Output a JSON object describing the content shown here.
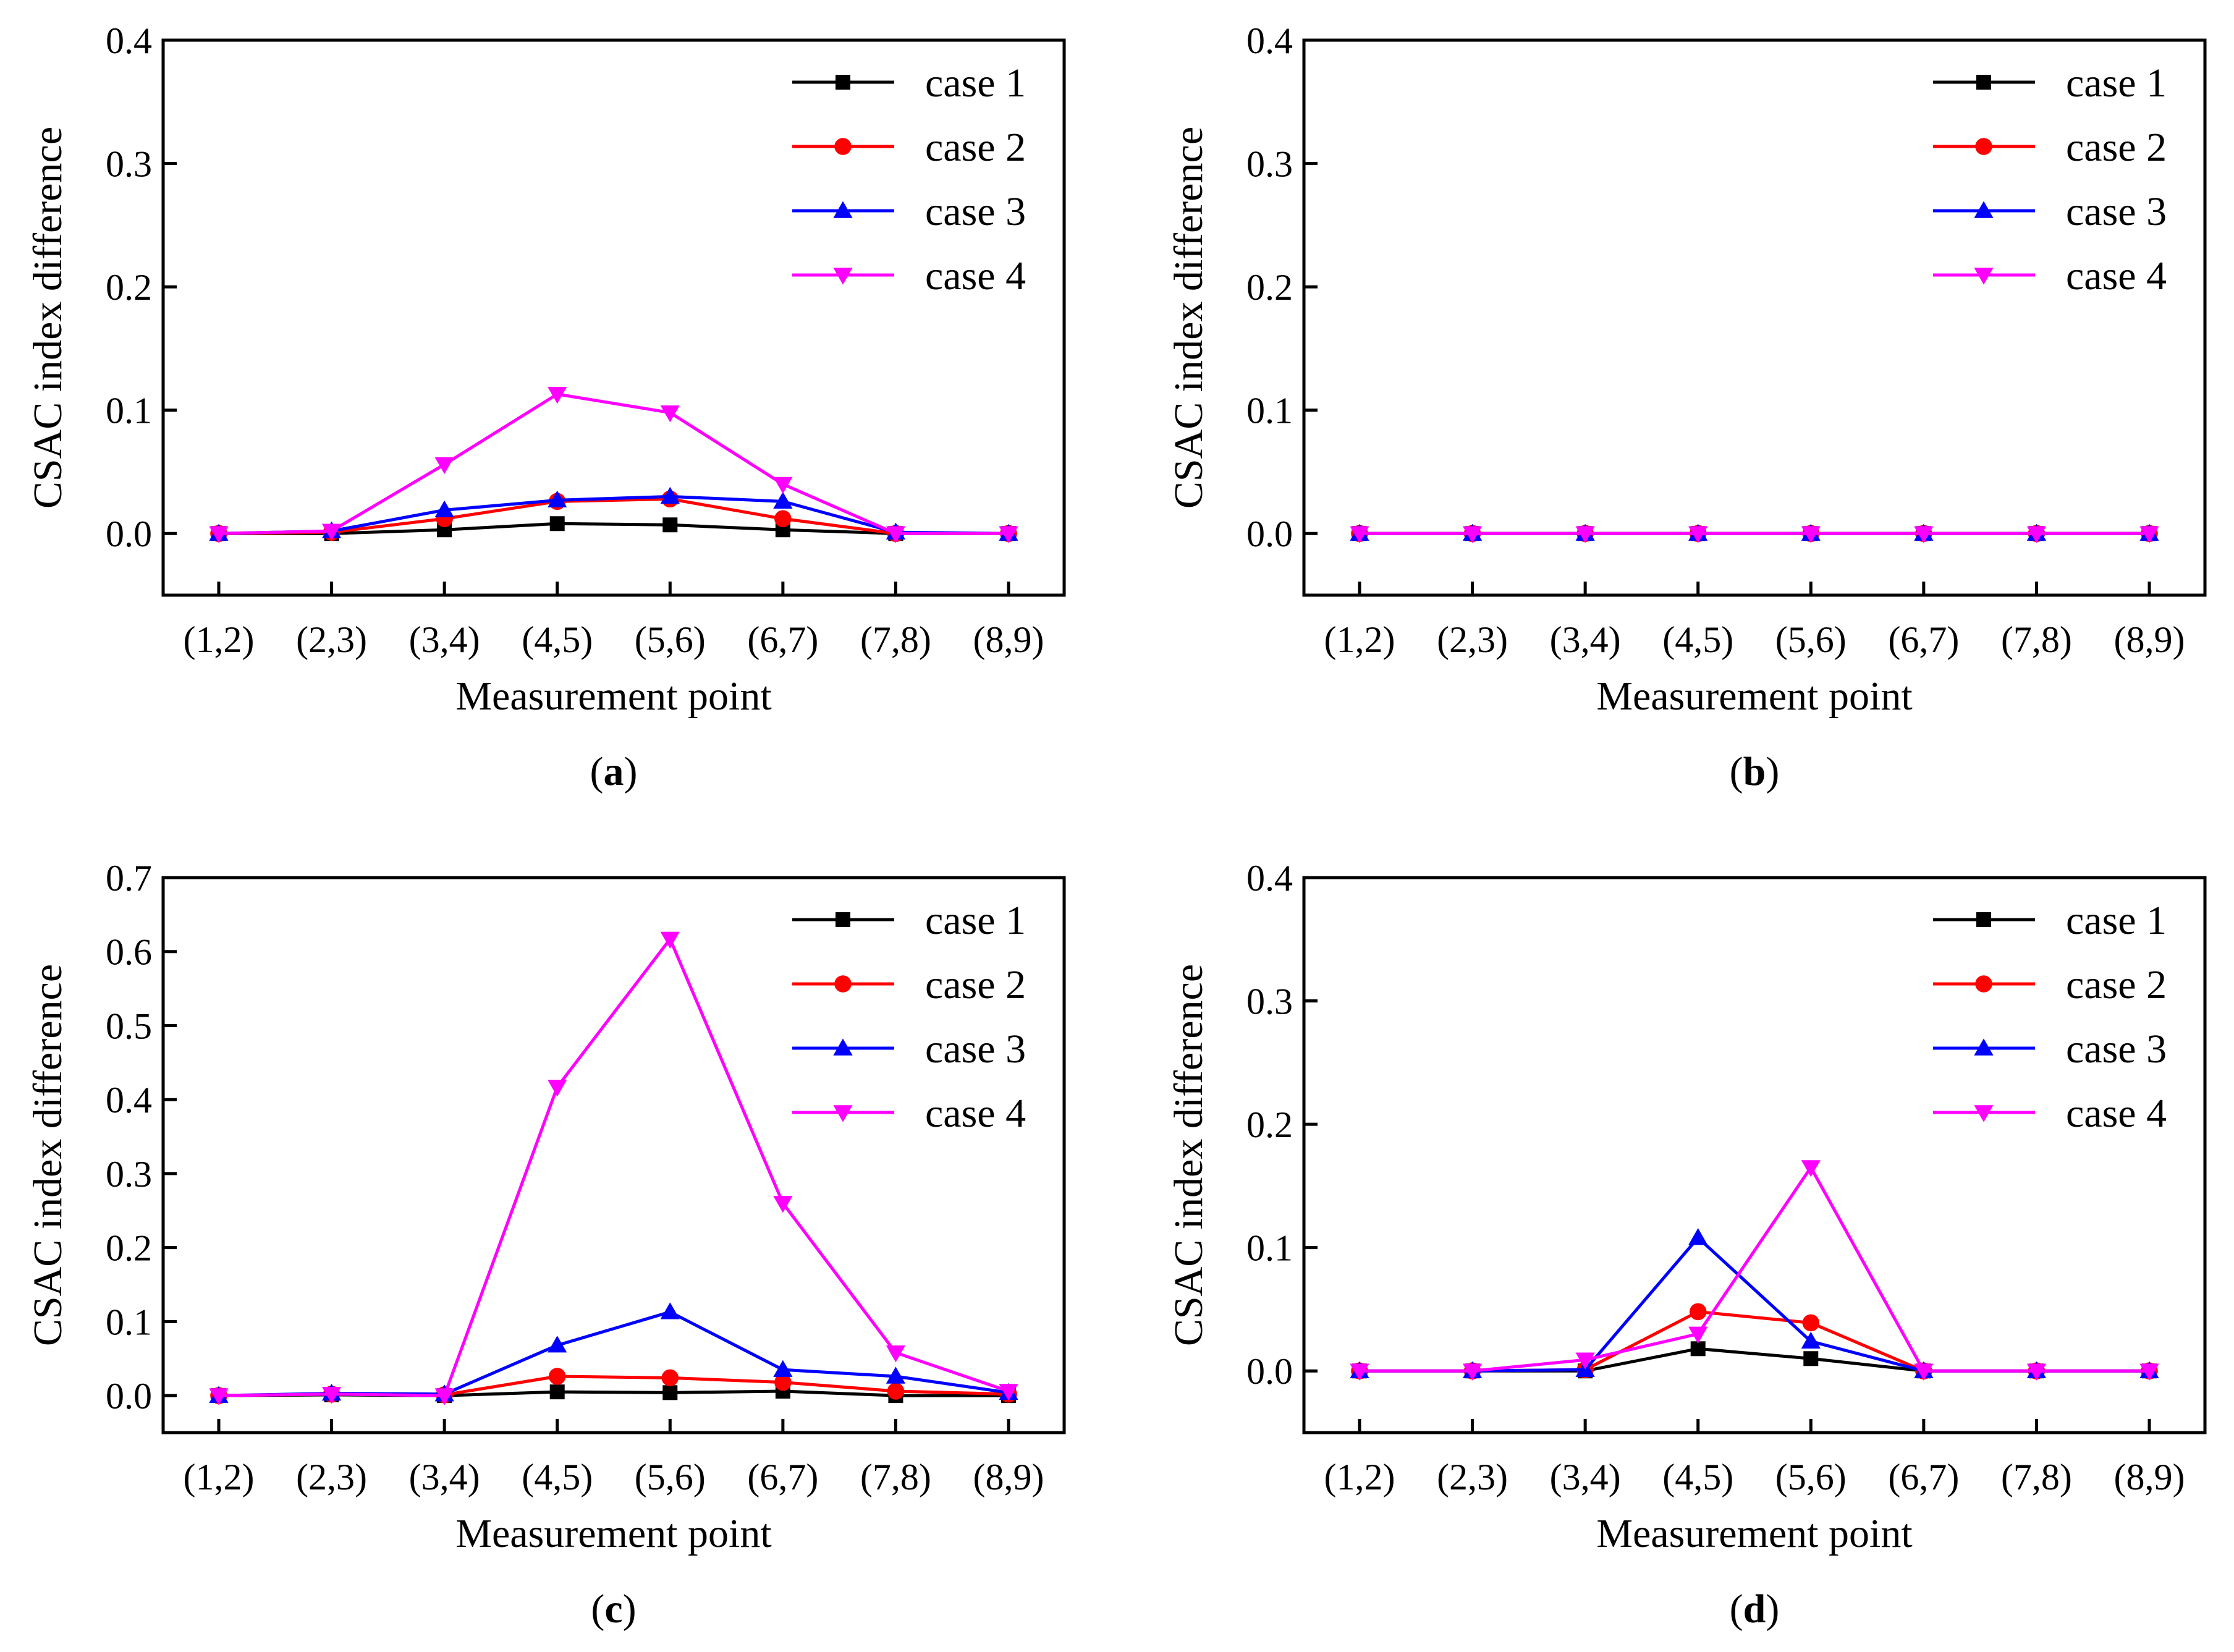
{
  "figure": {
    "colors": {
      "case 1": "#000000",
      "case 2": "#ff0000",
      "case 3": "#0000ff",
      "case 4": "#ff00ff"
    },
    "markers": {
      "case 1": "square",
      "case 2": "circle",
      "case 3": "triangle-up",
      "case 4": "triangle-down"
    }
  },
  "chart_data": [
    {
      "panel": "a",
      "caption": {
        "open": "(",
        "letter": "a",
        "close": ")"
      },
      "type": "line",
      "xlabel": "Measurement point",
      "ylabel": "CSAC index difference",
      "categories": [
        "(1,2)",
        "(2,3)",
        "(3,4)",
        "(4,5)",
        "(5,6)",
        "(6,7)",
        "(7,8)",
        "(8,9)"
      ],
      "ylim": [
        -0.05,
        0.4
      ],
      "yticks": [
        0.0,
        0.1,
        0.2,
        0.3,
        0.4
      ],
      "ytick_labels": [
        "0.0",
        "0.1",
        "0.2",
        "0.3",
        "0.4"
      ],
      "legend": "top-right",
      "series": [
        {
          "name": "case 1",
          "values": [
            0,
            0,
            0.003,
            0.008,
            0.007,
            0.003,
            0,
            0
          ]
        },
        {
          "name": "case 2",
          "values": [
            0,
            0.001,
            0.012,
            0.026,
            0.028,
            0.012,
            0,
            0
          ]
        },
        {
          "name": "case 3",
          "values": [
            0,
            0.002,
            0.019,
            0.027,
            0.03,
            0.026,
            0.001,
            0
          ]
        },
        {
          "name": "case 4",
          "values": [
            0,
            0.002,
            0.056,
            0.113,
            0.098,
            0.04,
            0,
            0
          ]
        }
      ]
    },
    {
      "panel": "b",
      "caption": {
        "open": "(",
        "letter": "b",
        "close": ")"
      },
      "type": "line",
      "xlabel": "Measurement point",
      "ylabel": "CSAC index difference",
      "categories": [
        "(1,2)",
        "(2,3)",
        "(3,4)",
        "(4,5)",
        "(5,6)",
        "(6,7)",
        "(7,8)",
        "(8,9)"
      ],
      "ylim": [
        -0.05,
        0.4
      ],
      "yticks": [
        0.0,
        0.1,
        0.2,
        0.3,
        0.4
      ],
      "ytick_labels": [
        "0.0",
        "0.1",
        "0.2",
        "0.3",
        "0.4"
      ],
      "legend": "top-right",
      "series": [
        {
          "name": "case 1",
          "values": [
            0,
            0,
            0,
            0,
            0,
            0,
            0,
            0
          ]
        },
        {
          "name": "case 2",
          "values": [
            0,
            0,
            0,
            0,
            0,
            0,
            0,
            0
          ]
        },
        {
          "name": "case 3",
          "values": [
            0,
            0,
            0,
            0,
            0,
            0,
            0,
            0
          ]
        },
        {
          "name": "case 4",
          "values": [
            0,
            0,
            0,
            0,
            0,
            0,
            0,
            0
          ]
        }
      ]
    },
    {
      "panel": "c",
      "caption": {
        "open": "(",
        "letter": "c",
        "close": ")"
      },
      "type": "line",
      "xlabel": "Measurement point",
      "ylabel": "CSAC index difference",
      "categories": [
        "(1,2)",
        "(2,3)",
        "(3,4)",
        "(4,5)",
        "(5,6)",
        "(6,7)",
        "(7,8)",
        "(8,9)"
      ],
      "ylim": [
        -0.05,
        0.7
      ],
      "yticks": [
        0.0,
        0.1,
        0.2,
        0.3,
        0.4,
        0.5,
        0.6,
        0.7
      ],
      "ytick_labels": [
        "0.0",
        "0.1",
        "0.2",
        "0.3",
        "0.4",
        "0.5",
        "0.6",
        "0.7"
      ],
      "legend": "top-right",
      "series": [
        {
          "name": "case 1",
          "values": [
            0,
            0.001,
            0,
            0.005,
            0.004,
            0.006,
            0,
            0
          ]
        },
        {
          "name": "case 2",
          "values": [
            0,
            0.002,
            0.001,
            0.026,
            0.024,
            0.018,
            0.006,
            0.002
          ]
        },
        {
          "name": "case 3",
          "values": [
            0,
            0.003,
            0.002,
            0.068,
            0.113,
            0.035,
            0.026,
            0.004
          ]
        },
        {
          "name": "case 4",
          "values": [
            0,
            0.002,
            0,
            0.417,
            0.617,
            0.26,
            0.058,
            0.006
          ]
        }
      ]
    },
    {
      "panel": "d",
      "caption": {
        "open": "(",
        "letter": "d",
        "close": ")"
      },
      "type": "line",
      "xlabel": "Measurement point",
      "ylabel": "CSAC index difference",
      "categories": [
        "(1,2)",
        "(2,3)",
        "(3,4)",
        "(4,5)",
        "(5,6)",
        "(6,7)",
        "(7,8)",
        "(8,9)"
      ],
      "ylim": [
        -0.05,
        0.4
      ],
      "yticks": [
        0.0,
        0.1,
        0.2,
        0.3,
        0.4
      ],
      "ytick_labels": [
        "0.0",
        "0.1",
        "0.2",
        "0.3",
        "0.4"
      ],
      "legend": "top-right",
      "series": [
        {
          "name": "case 1",
          "values": [
            0,
            0,
            0,
            0.018,
            0.01,
            0,
            0,
            0
          ]
        },
        {
          "name": "case 2",
          "values": [
            0,
            0,
            0.001,
            0.048,
            0.039,
            0,
            0,
            0
          ]
        },
        {
          "name": "case 3",
          "values": [
            0,
            0,
            0.001,
            0.108,
            0.024,
            0,
            0,
            0
          ]
        },
        {
          "name": "case 4",
          "values": [
            0,
            0,
            0.009,
            0.03,
            0.165,
            0,
            0,
            0
          ]
        }
      ]
    }
  ]
}
